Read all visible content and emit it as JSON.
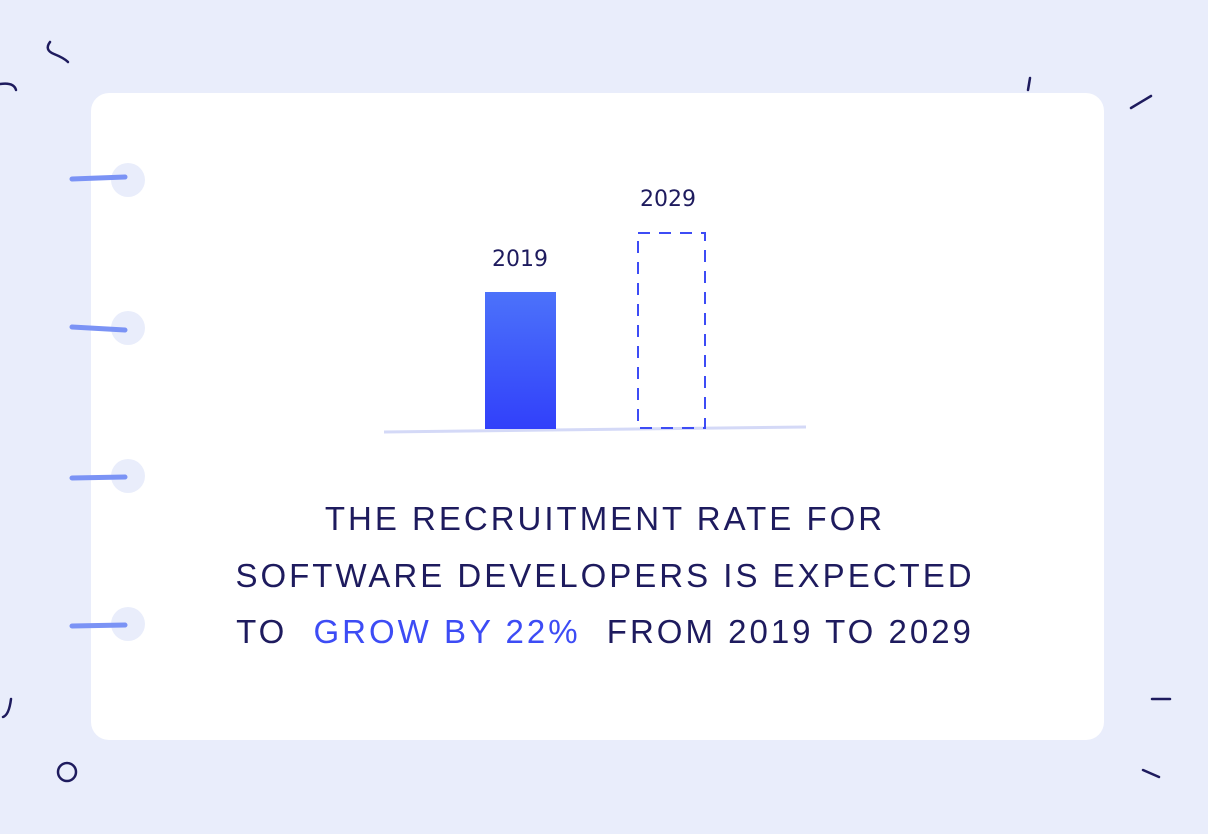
{
  "bar_labels": [
    "2019",
    "2029"
  ],
  "caption": {
    "lines": [
      "THE RECRUITMENT RATE FOR",
      "SOFTWARE DEVELOPERS IS EXPECTED"
    ],
    "last_line": {
      "before": "TO",
      "highlight": "GROW BY 22%",
      "after": "FROM 2019 TO 2029"
    }
  }
}
